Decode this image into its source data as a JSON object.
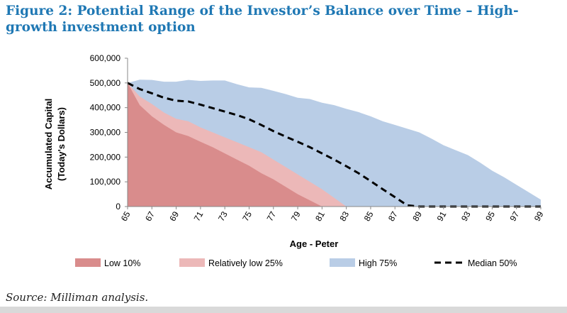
{
  "figure": {
    "title": "Figure 2: Potential Range of the Investor’s Balance over Time – High-growth investment option",
    "source": "Source: Milliman analysis."
  },
  "chart_data": {
    "type": "area",
    "xlabel": "Age - Peter",
    "ylabel_line1": "Accumulated Capital",
    "ylabel_line2": "(Today's Dollars)",
    "ylim": [
      0,
      600000
    ],
    "yticks": [
      0,
      100000,
      200000,
      300000,
      400000,
      500000,
      600000
    ],
    "ytick_labels": [
      "0",
      "100,000",
      "200,000",
      "300,000",
      "400,000",
      "500,000",
      "600,000"
    ],
    "x": [
      65,
      66,
      67,
      68,
      69,
      70,
      71,
      72,
      73,
      74,
      75,
      76,
      77,
      78,
      79,
      80,
      81,
      82,
      83,
      84,
      85,
      86,
      87,
      88,
      89,
      90,
      91,
      92,
      93,
      94,
      95,
      96,
      97,
      98,
      99
    ],
    "xtick_labels": [
      "65",
      "67",
      "69",
      "71",
      "73",
      "75",
      "77",
      "79",
      "81",
      "83",
      "85",
      "87",
      "89",
      "91",
      "93",
      "95",
      "97",
      "99"
    ],
    "grid": false,
    "legend_position": "bottom",
    "series": [
      {
        "name": "Low 10%",
        "color": "#d98c8c",
        "values": [
          500000,
          410000,
          365000,
          330000,
          300000,
          285000,
          262000,
          240000,
          215000,
          190000,
          165000,
          135000,
          110000,
          80000,
          50000,
          25000,
          0,
          0,
          0,
          0,
          0,
          0,
          0,
          0,
          0,
          0,
          0,
          0,
          0,
          0,
          0,
          0,
          0,
          0,
          0
        ]
      },
      {
        "name": "Relatively low 25%",
        "color": "#ecb8b8",
        "values": [
          500000,
          445000,
          415000,
          380000,
          355000,
          345000,
          320000,
          300000,
          280000,
          260000,
          240000,
          220000,
          190000,
          160000,
          130000,
          100000,
          70000,
          35000,
          0,
          0,
          0,
          0,
          0,
          0,
          0,
          0,
          0,
          0,
          0,
          0,
          0,
          0,
          0,
          0,
          0
        ]
      },
      {
        "name": "High 75%",
        "color": "#b9cde6",
        "values": [
          500000,
          513000,
          512000,
          505000,
          505000,
          512000,
          508000,
          510000,
          510000,
          495000,
          482000,
          480000,
          468000,
          455000,
          440000,
          435000,
          420000,
          410000,
          395000,
          382000,
          365000,
          345000,
          330000,
          315000,
          300000,
          275000,
          248000,
          228000,
          208000,
          178000,
          145000,
          118000,
          88000,
          58000,
          28000
        ]
      },
      {
        "name": "Median 50%",
        "color": "#000000",
        "style": "dashed",
        "values": [
          500000,
          475000,
          458000,
          440000,
          428000,
          425000,
          412000,
          398000,
          384000,
          370000,
          353000,
          330000,
          305000,
          283000,
          262000,
          240000,
          215000,
          190000,
          163000,
          135000,
          103000,
          70000,
          38000,
          5000,
          0,
          0,
          0,
          0,
          0,
          0,
          0,
          0,
          0,
          0,
          0
        ]
      }
    ]
  }
}
